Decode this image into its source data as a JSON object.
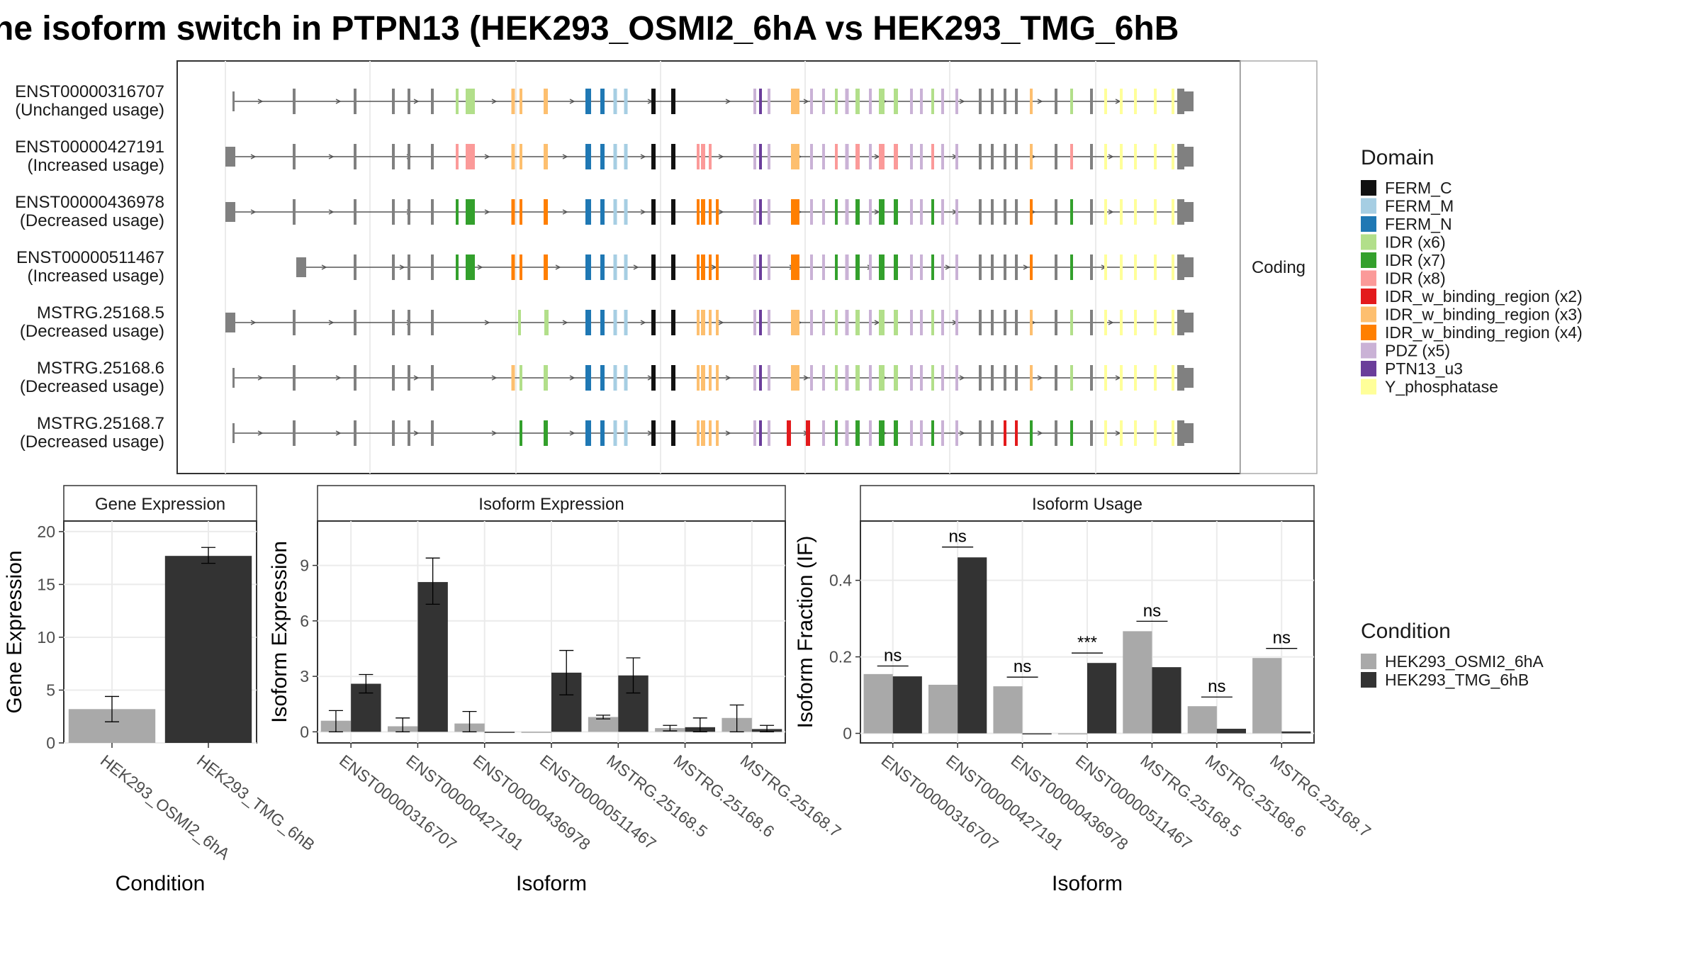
{
  "title": "he isoform switch in PTPN13 (HEK293_OSMI2_6hA vs HEK293_TMG_6hB",
  "colors": {
    "cond_a": "#a9a9a9",
    "cond_b": "#333333",
    "intron": "#555555",
    "exon": "#808080",
    "panel_border": "#333333",
    "strip_fill": "#ffffff",
    "grid": "#ebebeb"
  },
  "transcripts": {
    "strip_label": "Coding",
    "rows": [
      {
        "id": "ENST00000316707",
        "usage": "(Unchanged usage)",
        "start": 1,
        "exon_pattern": "A",
        "ends": "full"
      },
      {
        "id": "ENST00000427191",
        "usage": "(Increased usage)",
        "start": 0,
        "exon_pattern": "B",
        "ends": "full"
      },
      {
        "id": "ENST00000436978",
        "usage": "(Decreased usage)",
        "start": 0,
        "exon_pattern": "C",
        "ends": "full"
      },
      {
        "id": "ENST00000511467",
        "usage": "(Increased usage)",
        "start": 2,
        "exon_pattern": "C",
        "ends": "full"
      },
      {
        "id": "MSTRG.25168.5",
        "usage": "(Decreased usage)",
        "start": 0,
        "exon_pattern": "D",
        "ends": "full"
      },
      {
        "id": "MSTRG.25168.6",
        "usage": "(Decreased usage)",
        "start": 1,
        "exon_pattern": "E",
        "ends": "full"
      },
      {
        "id": "MSTRG.25168.7",
        "usage": "(Decreased usage)",
        "start": 1,
        "exon_pattern": "F",
        "ends": "full"
      }
    ]
  },
  "domain_legend": {
    "title": "Domain",
    "items": [
      {
        "label": "FERM_C",
        "color": "#111111"
      },
      {
        "label": "FERM_M",
        "color": "#a6cee3"
      },
      {
        "label": "FERM_N",
        "color": "#1f78b4"
      },
      {
        "label": "IDR (x6)",
        "color": "#b2df8a"
      },
      {
        "label": "IDR (x7)",
        "color": "#33a02c"
      },
      {
        "label": "IDR (x8)",
        "color": "#fb9a99"
      },
      {
        "label": "IDR_w_binding_region (x2)",
        "color": "#e31a1c"
      },
      {
        "label": "IDR_w_binding_region (x3)",
        "color": "#fdbf6f"
      },
      {
        "label": "IDR_w_binding_region (x4)",
        "color": "#ff7f00"
      },
      {
        "label": "PDZ (x5)",
        "color": "#cab2d6"
      },
      {
        "label": "PTN13_u3",
        "color": "#6a3d9a"
      },
      {
        "label": "Y_phosphatase",
        "color": "#ffff99"
      }
    ]
  },
  "condition_legend": {
    "title": "Condition",
    "items": [
      {
        "label": "HEK293_OSMI2_6hA",
        "color": "#a9a9a9"
      },
      {
        "label": "HEK293_TMG_6hB",
        "color": "#333333"
      }
    ]
  },
  "chart_data": [
    {
      "type": "bar",
      "title": "Gene Expression",
      "xlabel": "Condition",
      "ylabel": "Gene Expression",
      "categories": [
        "HEK293_OSMI2_6hA",
        "HEK293_TMG_6hB"
      ],
      "values": [
        3.2,
        17.7
      ],
      "errors": [
        [
          2.0,
          4.4
        ],
        [
          17.0,
          18.5
        ]
      ],
      "ylim": [
        0,
        21
      ],
      "yticks": [
        0,
        5,
        10,
        15,
        20
      ]
    },
    {
      "type": "bar",
      "title": "Isoform Expression",
      "xlabel": "Isoform",
      "ylabel": "Isoform Expression",
      "categories": [
        "ENST00000316707",
        "ENST00000427191",
        "ENST00000436978",
        "ENST00000511467",
        "MSTRG.25168.5",
        "MSTRG.25168.6",
        "MSTRG.25168.7"
      ],
      "series": [
        {
          "name": "HEK293_OSMI2_6hA",
          "values": [
            0.6,
            0.3,
            0.45,
            0.0,
            0.8,
            0.2,
            0.75
          ],
          "errors": [
            [
              0.0,
              1.15
            ],
            [
              0.0,
              0.75
            ],
            [
              0.0,
              1.1
            ],
            [
              0.0,
              0.0
            ],
            [
              0.7,
              0.9
            ],
            [
              0.05,
              0.35
            ],
            [
              0.0,
              1.45
            ]
          ]
        },
        {
          "name": "HEK293_TMG_6hB",
          "values": [
            2.6,
            8.1,
            0.0,
            3.2,
            3.05,
            0.25,
            0.15
          ],
          "errors": [
            [
              2.1,
              3.1
            ],
            [
              6.9,
              9.4
            ],
            [
              0.0,
              0.0
            ],
            [
              2.0,
              4.4
            ],
            [
              2.1,
              4.0
            ],
            [
              0.0,
              0.75
            ],
            [
              0.0,
              0.35
            ]
          ]
        }
      ],
      "ylim": [
        -0.6,
        11.4
      ],
      "yticks": [
        0,
        3,
        6,
        9
      ]
    },
    {
      "type": "bar",
      "title": "Isoform Usage",
      "xlabel": "Isoform",
      "ylabel": "Isoform Fraction (IF)",
      "categories": [
        "ENST00000316707",
        "ENST00000427191",
        "ENST00000436978",
        "ENST00000511467",
        "MSTRG.25168.5",
        "MSTRG.25168.6",
        "MSTRG.25168.7"
      ],
      "series": [
        {
          "name": "HEK293_OSMI2_6hA",
          "values": [
            0.155,
            0.127,
            0.123,
            0.0,
            0.267,
            0.071,
            0.197
          ]
        },
        {
          "name": "HEK293_TMG_6hB",
          "values": [
            0.149,
            0.46,
            0.0,
            0.184,
            0.173,
            0.012,
            0.005
          ]
        }
      ],
      "significance": [
        "ns",
        "ns",
        "ns",
        "***",
        "ns",
        "ns",
        "ns"
      ],
      "sig_level": [
        0.176,
        0.487,
        0.147,
        0.21,
        0.293,
        0.095,
        0.222
      ],
      "ylim": [
        -0.025,
        0.555
      ],
      "yticks": [
        0.0,
        0.2,
        0.4
      ]
    }
  ]
}
